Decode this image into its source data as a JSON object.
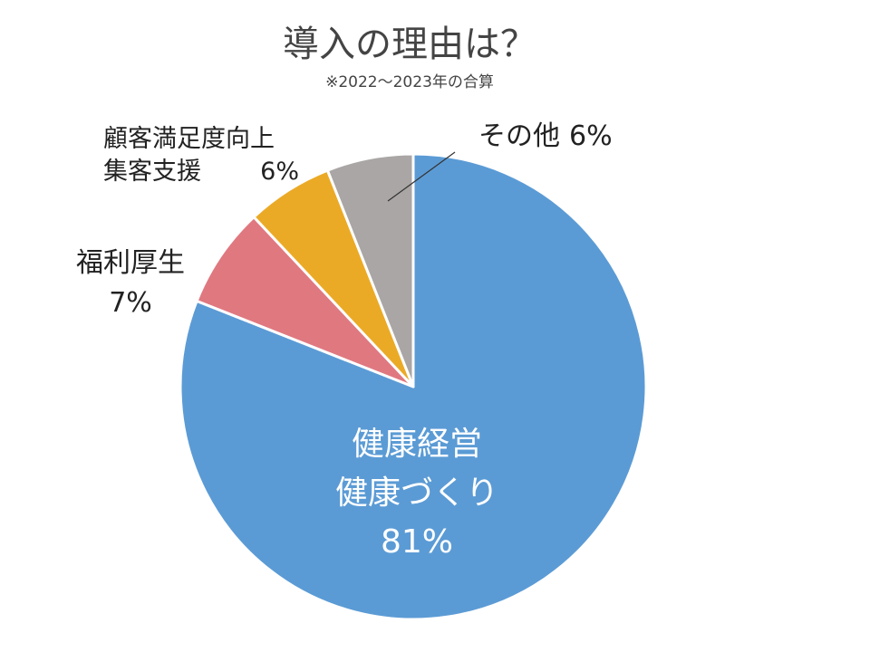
{
  "chart_data": {
    "type": "pie",
    "title": "導入の理由は？",
    "subtitle": "※2022～2023年の合算",
    "slices": [
      {
        "label_lines": [
          "健康経営",
          "健康づくり"
        ],
        "value": 81,
        "value_text": "81%",
        "color": "#5b9bd5"
      },
      {
        "label_lines": [
          "福利厚生"
        ],
        "value": 7,
        "value_text": "7%",
        "color": "#e07880"
      },
      {
        "label_lines": [
          "顧客満足度向上",
          "集客支援"
        ],
        "value": 6,
        "value_text": "6%",
        "color": "#ebaa26"
      },
      {
        "label_lines": [
          "その他"
        ],
        "value": 6,
        "value_text": "6%",
        "color": "#aaa6a6"
      }
    ],
    "start_angle": "12 o'clock",
    "direction": "clockwise"
  }
}
